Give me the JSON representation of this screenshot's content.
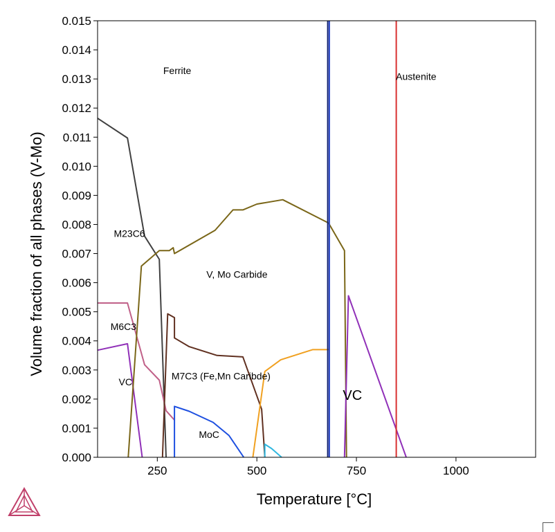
{
  "chart_data": {
    "type": "line",
    "title": "",
    "xlabel": "Temperature [°C]",
    "ylabel": "Volume fraction of all phases (V-Mo)",
    "xlim": [
      100,
      1200
    ],
    "ylim": [
      0,
      0.015
    ],
    "xticks": [
      250,
      500,
      750,
      1000
    ],
    "xtick_labels": [
      "250",
      "500",
      "750",
      "1000"
    ],
    "yticks": [
      0,
      0.001,
      0.002,
      0.003,
      0.004,
      0.005,
      0.006,
      0.007,
      0.008,
      0.009,
      0.01,
      0.011,
      0.012,
      0.013,
      0.014,
      0.015
    ],
    "ytick_labels": [
      "0.000",
      "0.001",
      "0.002",
      "0.003",
      "0.004",
      "0.005",
      "0.006",
      "0.007",
      "0.008",
      "0.009",
      "0.010",
      "0.011",
      "0.012",
      "0.013",
      "0.014",
      "0.015"
    ],
    "grid": false,
    "series": [
      {
        "color": "#404040",
        "x": [
          100,
          175,
          218,
          255,
          272
        ],
        "y": [
          0.01165,
          0.01097,
          0.0076,
          0.0068,
          0
        ]
      },
      {
        "color": "#c06088",
        "x": [
          100,
          175,
          218,
          255,
          272,
          293
        ],
        "y": [
          0.0053,
          0.0053,
          0.00318,
          0.00265,
          0.0016,
          0.00128
        ]
      },
      {
        "color": "#9030b8",
        "x": [
          100,
          175,
          212
        ],
        "y": [
          0.00368,
          0.0039,
          0
        ]
      },
      {
        "color": "#7a6618",
        "x": [
          177,
          210,
          255,
          280,
          290,
          293,
          395,
          440,
          465,
          500,
          565,
          680,
          720,
          725
        ],
        "y": [
          0,
          0.00657,
          0.0071,
          0.0071,
          0.0072,
          0.007,
          0.0078,
          0.0085,
          0.0085,
          0.0087,
          0.00885,
          0.00805,
          0.0071,
          0
        ]
      },
      {
        "color": "#603020",
        "x": [
          263,
          276,
          293,
          293,
          330,
          400,
          465,
          512,
          520
        ],
        "y": [
          0,
          0.00493,
          0.0048,
          0.0041,
          0.0038,
          0.0035,
          0.00345,
          0.00165,
          0
        ]
      },
      {
        "color": "#1d4fe0",
        "x": [
          293,
          293,
          330,
          390,
          430,
          467
        ],
        "y": [
          0,
          0.00175,
          0.00158,
          0.0012,
          0.00075,
          0
        ]
      },
      {
        "color": "#f0a020",
        "x": [
          490,
          520,
          560,
          640,
          682
        ],
        "y": [
          0,
          0.00295,
          0.00335,
          0.0037,
          0.0037
        ]
      },
      {
        "color": "#30b8e0",
        "x": [
          520,
          520,
          537,
          562
        ],
        "y": [
          0,
          0.00045,
          0.0003,
          0
        ]
      },
      {
        "color": "#9030b8",
        "x": [
          720,
          730,
          875
        ],
        "y": [
          0,
          0.00555,
          0
        ]
      },
      {
        "color": "#102070",
        "x": [
          678,
          678
        ],
        "y": [
          0,
          0.015
        ]
      },
      {
        "color": "#2a48c8",
        "x": [
          682,
          682
        ],
        "y": [
          0,
          0.015
        ]
      },
      {
        "color": "#d83030",
        "x": [
          850,
          850
        ],
        "y": [
          0,
          0.015
        ]
      }
    ],
    "annotations": [
      {
        "text": "Ferrite",
        "x": 300,
        "y": 0.01317,
        "size": "small"
      },
      {
        "text": "Austenite",
        "x": 900,
        "y": 0.01297,
        "size": "small"
      },
      {
        "text": "M23C6",
        "x": 180,
        "y": 0.00757,
        "size": "small"
      },
      {
        "text": "V, Mo Carbide",
        "x": 450,
        "y": 0.00617,
        "size": "small"
      },
      {
        "text": "M6C3",
        "x": 165,
        "y": 0.00437,
        "size": "small"
      },
      {
        "text": "M7C3 (Fe,Mn Caribde)",
        "x": 410,
        "y": 0.00267,
        "size": "small"
      },
      {
        "text": "VC",
        "x": 170,
        "y": 0.00247,
        "size": "small"
      },
      {
        "text": "VC",
        "x": 740,
        "y": 0.00197,
        "size": "large"
      },
      {
        "text": "MoC",
        "x": 380,
        "y": 0.00067,
        "size": "small"
      }
    ],
    "logo": "thermo-calc-triangle-logo"
  }
}
